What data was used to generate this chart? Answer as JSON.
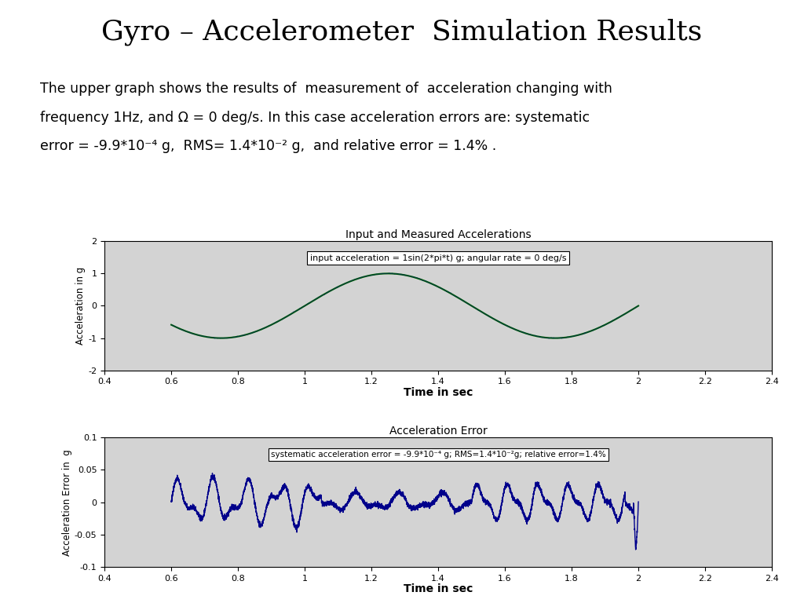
{
  "title": "Gyro – Accelerometer  Simulation Results",
  "title_fontsize": 26,
  "description_lines": [
    "The upper graph shows the results of  measurement of  acceleration changing with",
    "frequency 1Hz, and Ω = 0 deg/s. In this case acceleration errors are: systematic",
    "error = -9.9*10⁻⁴ g,  RMS= 1.4*10⁻² g,  and relative error = 1.4% ."
  ],
  "desc_fontsize": 12.5,
  "upper_title": "Input and Measured Accelerations",
  "upper_xlabel": "Time in sec",
  "upper_ylabel": "Acceleration in g",
  "upper_legend": "input acceleration = 1sin(2*pi*t) g; angular rate = 0 deg/s",
  "upper_xlim": [
    0.4,
    2.4
  ],
  "upper_ylim": [
    -2,
    2
  ],
  "upper_xticks": [
    0.4,
    0.6,
    0.8,
    1.0,
    1.2,
    1.4,
    1.6,
    1.8,
    2.0,
    2.2,
    2.4
  ],
  "upper_yticks": [
    -2,
    -1,
    0,
    1,
    2
  ],
  "upper_line_color": "#006400",
  "upper_meas_color": "#00008B",
  "lower_title": "Acceleration Error",
  "lower_xlabel": "Time in sec",
  "lower_ylabel": "Acceleration Error in  g",
  "lower_legend": "systematic acceleration error = -9.9*10⁻⁴ g; RMS=1.4*10⁻²g; relative error=1.4%",
  "lower_xlim": [
    0.4,
    2.4
  ],
  "lower_ylim": [
    -0.1,
    0.1
  ],
  "lower_xticks": [
    0.4,
    0.6,
    0.8,
    1.0,
    1.2,
    1.4,
    1.6,
    1.8,
    2.0,
    2.2,
    2.4
  ],
  "lower_yticks": [
    -0.1,
    -0.05,
    0,
    0.05,
    0.1
  ],
  "lower_line_color": "#00008B",
  "bg_color": "#ffffff",
  "plot_bg_color": "#d3d3d3"
}
